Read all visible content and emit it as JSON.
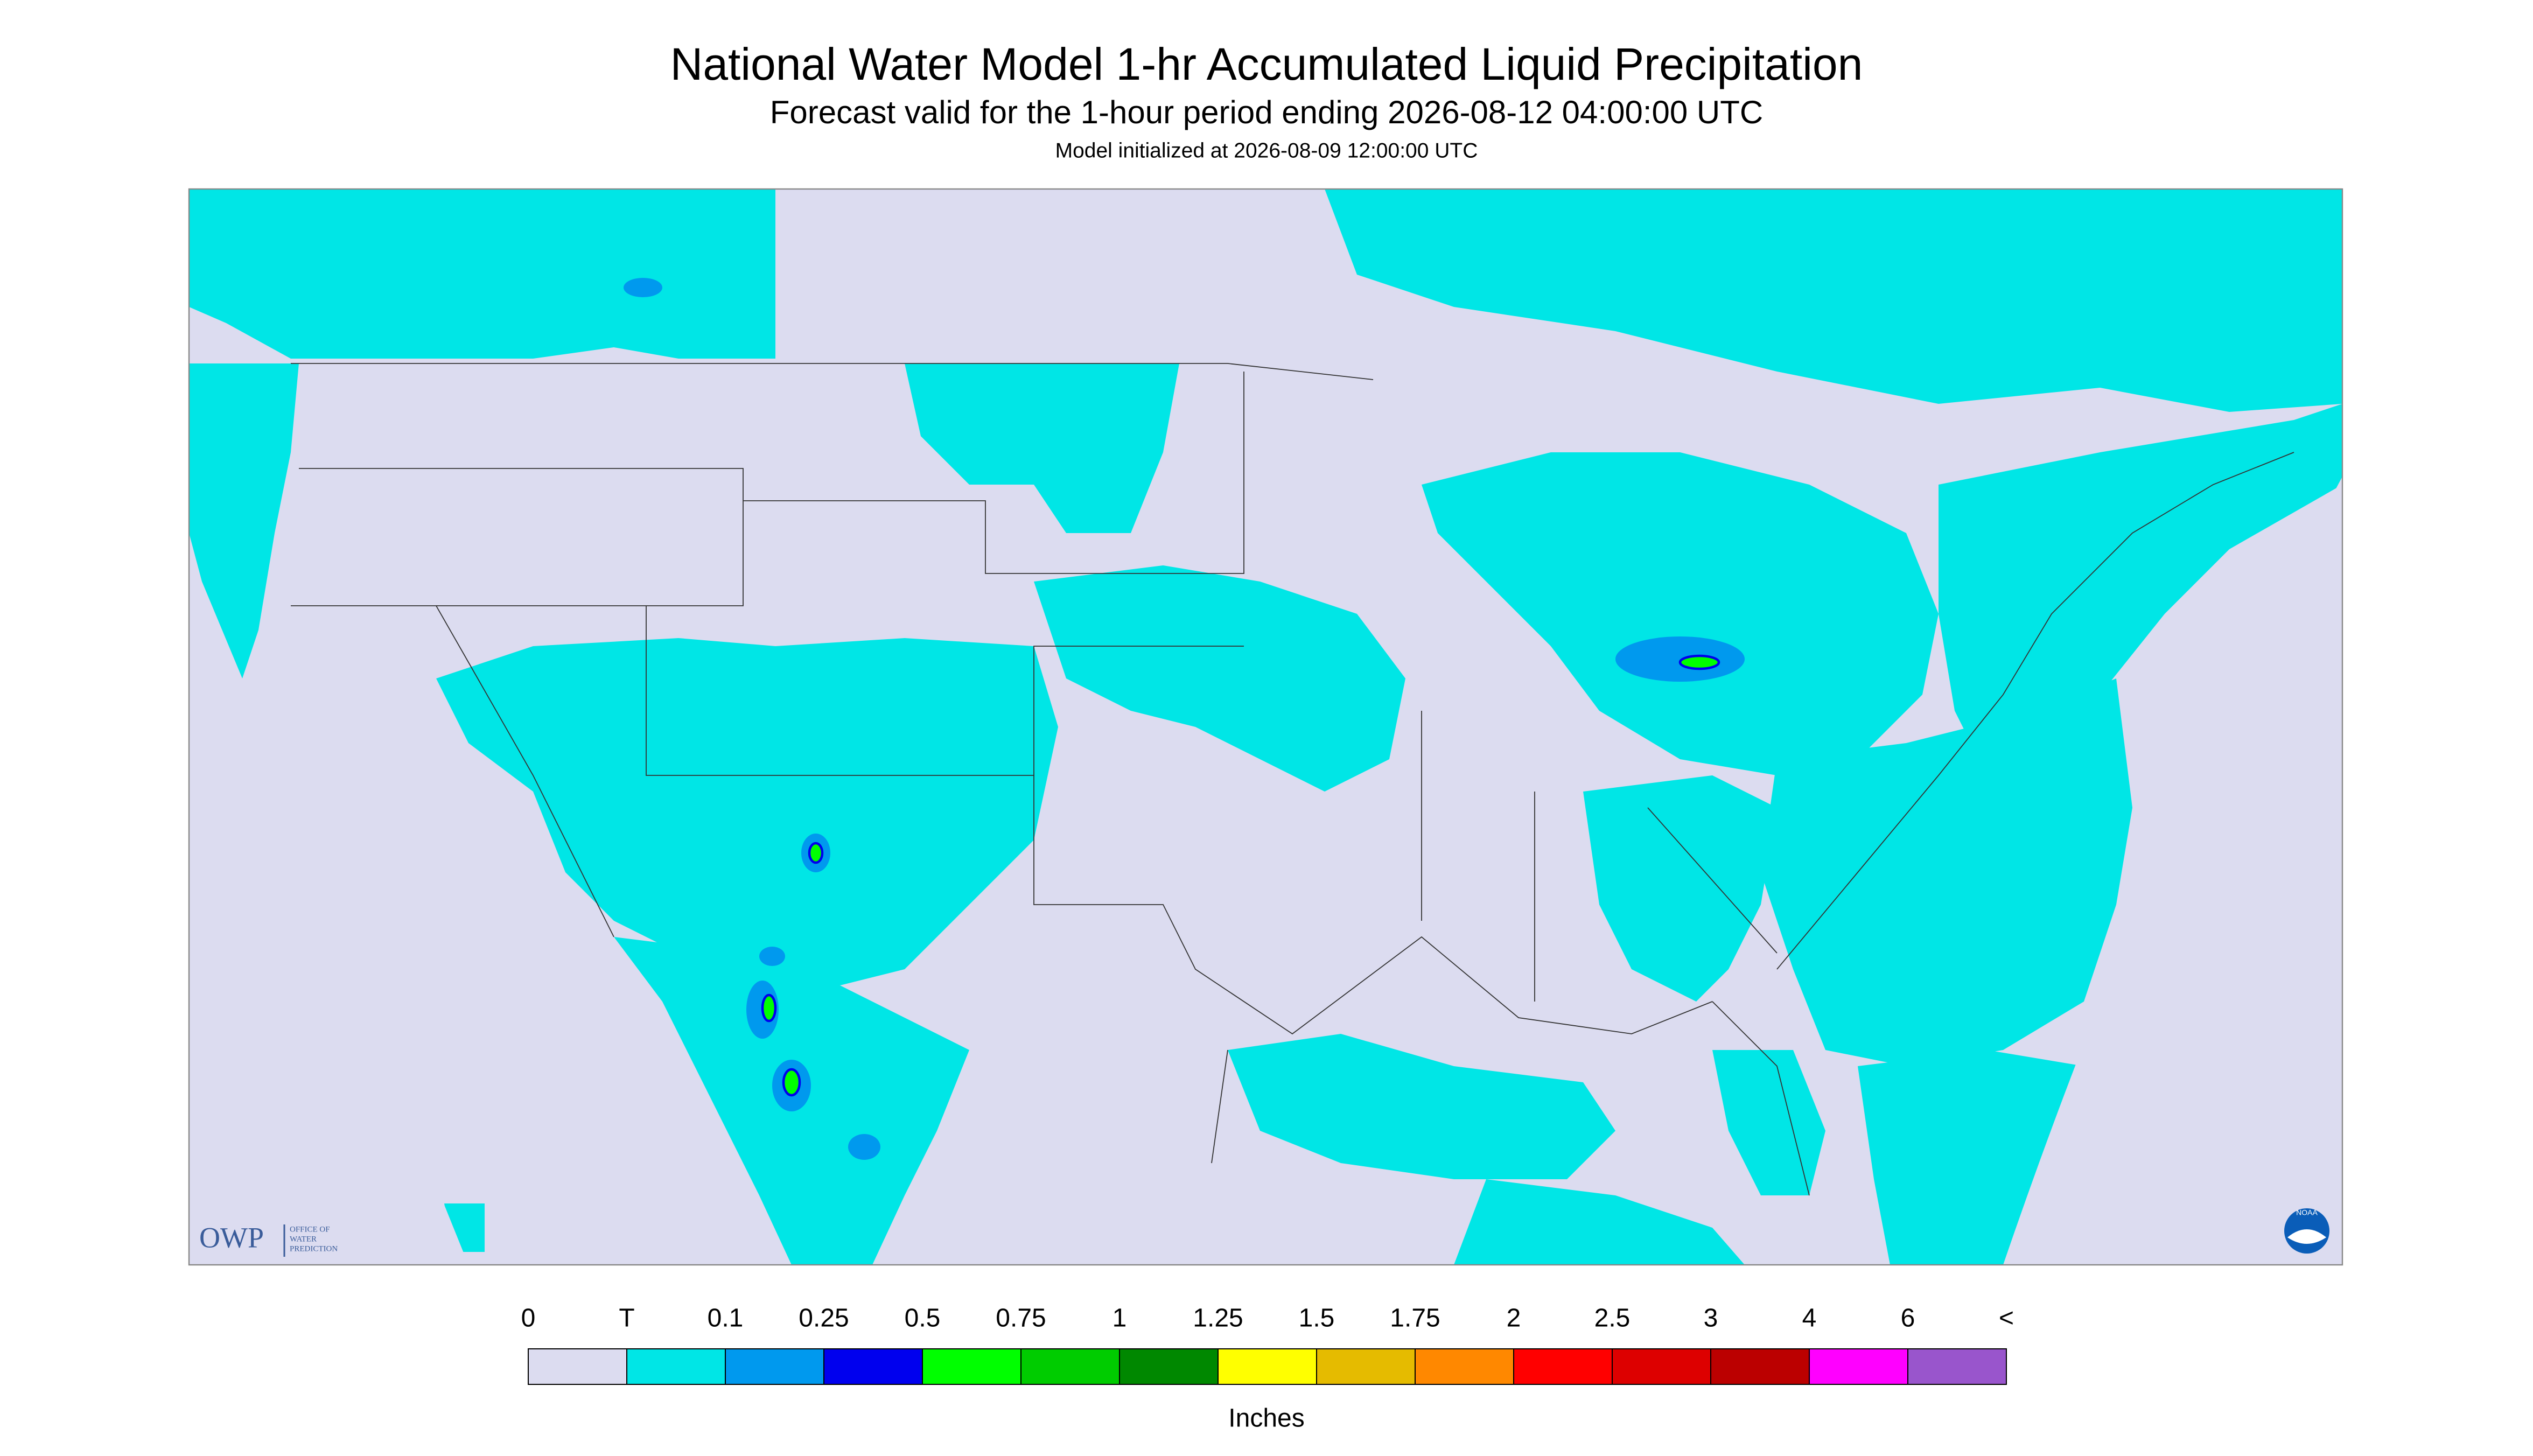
{
  "header": {
    "title": "National Water Model 1-hr Accumulated Liquid Precipitation",
    "subtitle": "Forecast valid for the 1-hour period ending 2026-08-12 04:00:00 UTC",
    "init": "Model initialized at 2026-08-09 12:00:00 UTC"
  },
  "logos": {
    "owp": "OWP",
    "owp_text": [
      "OFFICE OF",
      "WATER",
      "PREDICTION"
    ],
    "noaa": "NOAA"
  },
  "colorbar": {
    "labels": [
      "0",
      "T",
      "0.1",
      "0.25",
      "0.5",
      "0.75",
      "1",
      "1.25",
      "1.5",
      "1.75",
      "2",
      "2.5",
      "3",
      "4",
      "6",
      "<"
    ],
    "colors": [
      "#dcdcf0",
      "#00e6e6",
      "#0099ee",
      "#0000ee",
      "#00ff00",
      "#00cc00",
      "#008800",
      "#ffff00",
      "#e5bb00",
      "#ff8800",
      "#ff0000",
      "#dd0000",
      "#bb0000",
      "#ff00ff",
      "#9955cc"
    ],
    "unit": "Inches"
  }
}
